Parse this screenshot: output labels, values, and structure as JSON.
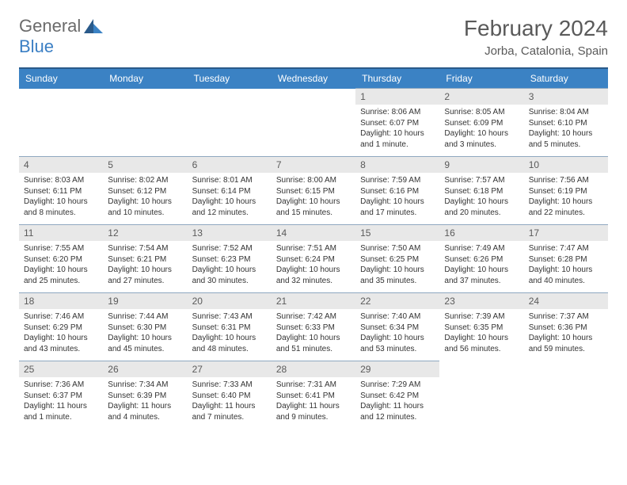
{
  "logo": {
    "general": "General",
    "blue": "Blue"
  },
  "title": "February 2024",
  "location": "Jorba, Catalonia, Spain",
  "colors": {
    "header_bg": "#3b82c4",
    "header_border": "#2a5a8a",
    "daynum_bg": "#e8e8e8",
    "cell_border": "#8fa8c0",
    "text_gray": "#5a5a5a",
    "logo_blue": "#3b7fc4"
  },
  "day_headers": [
    "Sunday",
    "Monday",
    "Tuesday",
    "Wednesday",
    "Thursday",
    "Friday",
    "Saturday"
  ],
  "weeks": [
    [
      null,
      null,
      null,
      null,
      {
        "n": "1",
        "sr": "8:06 AM",
        "ss": "6:07 PM",
        "dl": "10 hours and 1 minute."
      },
      {
        "n": "2",
        "sr": "8:05 AM",
        "ss": "6:09 PM",
        "dl": "10 hours and 3 minutes."
      },
      {
        "n": "3",
        "sr": "8:04 AM",
        "ss": "6:10 PM",
        "dl": "10 hours and 5 minutes."
      }
    ],
    [
      {
        "n": "4",
        "sr": "8:03 AM",
        "ss": "6:11 PM",
        "dl": "10 hours and 8 minutes."
      },
      {
        "n": "5",
        "sr": "8:02 AM",
        "ss": "6:12 PM",
        "dl": "10 hours and 10 minutes."
      },
      {
        "n": "6",
        "sr": "8:01 AM",
        "ss": "6:14 PM",
        "dl": "10 hours and 12 minutes."
      },
      {
        "n": "7",
        "sr": "8:00 AM",
        "ss": "6:15 PM",
        "dl": "10 hours and 15 minutes."
      },
      {
        "n": "8",
        "sr": "7:59 AM",
        "ss": "6:16 PM",
        "dl": "10 hours and 17 minutes."
      },
      {
        "n": "9",
        "sr": "7:57 AM",
        "ss": "6:18 PM",
        "dl": "10 hours and 20 minutes."
      },
      {
        "n": "10",
        "sr": "7:56 AM",
        "ss": "6:19 PM",
        "dl": "10 hours and 22 minutes."
      }
    ],
    [
      {
        "n": "11",
        "sr": "7:55 AM",
        "ss": "6:20 PM",
        "dl": "10 hours and 25 minutes."
      },
      {
        "n": "12",
        "sr": "7:54 AM",
        "ss": "6:21 PM",
        "dl": "10 hours and 27 minutes."
      },
      {
        "n": "13",
        "sr": "7:52 AM",
        "ss": "6:23 PM",
        "dl": "10 hours and 30 minutes."
      },
      {
        "n": "14",
        "sr": "7:51 AM",
        "ss": "6:24 PM",
        "dl": "10 hours and 32 minutes."
      },
      {
        "n": "15",
        "sr": "7:50 AM",
        "ss": "6:25 PM",
        "dl": "10 hours and 35 minutes."
      },
      {
        "n": "16",
        "sr": "7:49 AM",
        "ss": "6:26 PM",
        "dl": "10 hours and 37 minutes."
      },
      {
        "n": "17",
        "sr": "7:47 AM",
        "ss": "6:28 PM",
        "dl": "10 hours and 40 minutes."
      }
    ],
    [
      {
        "n": "18",
        "sr": "7:46 AM",
        "ss": "6:29 PM",
        "dl": "10 hours and 43 minutes."
      },
      {
        "n": "19",
        "sr": "7:44 AM",
        "ss": "6:30 PM",
        "dl": "10 hours and 45 minutes."
      },
      {
        "n": "20",
        "sr": "7:43 AM",
        "ss": "6:31 PM",
        "dl": "10 hours and 48 minutes."
      },
      {
        "n": "21",
        "sr": "7:42 AM",
        "ss": "6:33 PM",
        "dl": "10 hours and 51 minutes."
      },
      {
        "n": "22",
        "sr": "7:40 AM",
        "ss": "6:34 PM",
        "dl": "10 hours and 53 minutes."
      },
      {
        "n": "23",
        "sr": "7:39 AM",
        "ss": "6:35 PM",
        "dl": "10 hours and 56 minutes."
      },
      {
        "n": "24",
        "sr": "7:37 AM",
        "ss": "6:36 PM",
        "dl": "10 hours and 59 minutes."
      }
    ],
    [
      {
        "n": "25",
        "sr": "7:36 AM",
        "ss": "6:37 PM",
        "dl": "11 hours and 1 minute."
      },
      {
        "n": "26",
        "sr": "7:34 AM",
        "ss": "6:39 PM",
        "dl": "11 hours and 4 minutes."
      },
      {
        "n": "27",
        "sr": "7:33 AM",
        "ss": "6:40 PM",
        "dl": "11 hours and 7 minutes."
      },
      {
        "n": "28",
        "sr": "7:31 AM",
        "ss": "6:41 PM",
        "dl": "11 hours and 9 minutes."
      },
      {
        "n": "29",
        "sr": "7:29 AM",
        "ss": "6:42 PM",
        "dl": "11 hours and 12 minutes."
      },
      null,
      null
    ]
  ],
  "labels": {
    "sunrise": "Sunrise:",
    "sunset": "Sunset:",
    "daylight": "Daylight:"
  }
}
